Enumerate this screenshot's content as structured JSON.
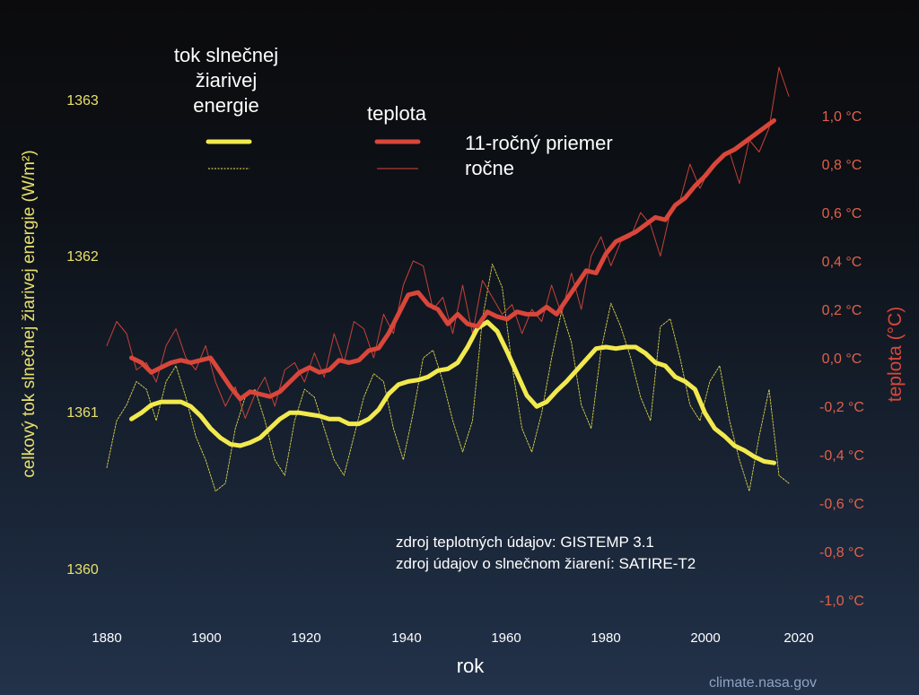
{
  "chart_data": {
    "type": "line",
    "colors": {
      "solar": "#f2e94e",
      "solar_label": "#e8e06a",
      "temperature": "#d9463a",
      "temperature_label": "#e0604a",
      "text": "#ffffff",
      "credit": "#8fa3c4"
    },
    "legend": {
      "solar_title_lines": [
        "tok slnečnej",
        "žiarivej",
        "energie"
      ],
      "temperature_title": "teplota",
      "smooth_label": "11-ročný priemer",
      "annual_label": "ročne"
    },
    "xlabel": "rok",
    "ylabel_left": "celkový tok slnečnej žiarivej energie (W/m²)",
    "ylabel_right": "teplota (°C)",
    "x_ticks": [
      "1880",
      "1900",
      "1920",
      "1940",
      "1960",
      "1980",
      "2000",
      "2020"
    ],
    "y_left_ticks": [
      "1360",
      "1361",
      "1362",
      "1363"
    ],
    "y_right_ticks": [
      "-1,0 °C",
      "-0,8 °C",
      "-0,6 °C",
      "-0,4 °C",
      "-0,2 °C",
      "0,0 °C",
      "0,2 °C",
      "0,4 °C",
      "0,6 °C",
      "0,8 °C",
      "1,0 °C"
    ],
    "xlim": [
      1880,
      2020
    ],
    "ylim_left": [
      1360,
      1363
    ],
    "ylim_right": [
      -1.0,
      1.0
    ],
    "sources": [
      "zdroj teplotných údajov: GISTEMP 3.1",
      "zdroj údajov o slnečnom žiarení: SATIRE-T2"
    ],
    "credit": "climate.nasa.gov",
    "series": [
      {
        "name": "tok slnečnej žiarivej energie – 11-ročný priemer",
        "axis": "left",
        "style": "thick",
        "x": [
          1885,
          1887,
          1889,
          1891,
          1893,
          1895,
          1897,
          1899,
          1901,
          1903,
          1905,
          1907,
          1909,
          1911,
          1913,
          1915,
          1917,
          1919,
          1921,
          1923,
          1925,
          1927,
          1929,
          1931,
          1933,
          1935,
          1937,
          1939,
          1941,
          1943,
          1945,
          1947,
          1949,
          1951,
          1953,
          1955,
          1957,
          1959,
          1961,
          1963,
          1965,
          1967,
          1969,
          1971,
          1973,
          1975,
          1977,
          1979,
          1981,
          1983,
          1985,
          1987,
          1989,
          1991,
          1993,
          1995,
          1997,
          1999,
          2001,
          2003,
          2005,
          2007,
          2009,
          2011,
          2013,
          2015
        ],
        "y": [
          1360.96,
          1361.0,
          1361.05,
          1361.07,
          1361.07,
          1361.07,
          1361.04,
          1360.98,
          1360.9,
          1360.84,
          1360.8,
          1360.79,
          1360.81,
          1360.84,
          1360.9,
          1360.96,
          1361.0,
          1361.0,
          1360.99,
          1360.98,
          1360.96,
          1360.96,
          1360.93,
          1360.93,
          1360.96,
          1361.02,
          1361.12,
          1361.18,
          1361.2,
          1361.21,
          1361.23,
          1361.27,
          1361.28,
          1361.32,
          1361.42,
          1361.54,
          1361.58,
          1361.52,
          1361.39,
          1361.25,
          1361.11,
          1361.04,
          1361.07,
          1361.14,
          1361.2,
          1361.27,
          1361.34,
          1361.41,
          1361.42,
          1361.41,
          1361.42,
          1361.42,
          1361.38,
          1361.32,
          1361.3,
          1361.23,
          1361.2,
          1361.15,
          1361.0,
          1360.9,
          1360.85,
          1360.79,
          1360.76,
          1360.72,
          1360.69,
          1360.68
        ]
      },
      {
        "name": "tok slnečnej žiarivej energie – ročne",
        "axis": "left",
        "style": "thin",
        "x": [
          1880,
          1882,
          1884,
          1886,
          1888,
          1890,
          1892,
          1894,
          1896,
          1898,
          1900,
          1902,
          1904,
          1906,
          1908,
          1910,
          1912,
          1914,
          1916,
          1918,
          1920,
          1922,
          1924,
          1926,
          1928,
          1930,
          1932,
          1934,
          1936,
          1938,
          1940,
          1942,
          1944,
          1946,
          1948,
          1950,
          1952,
          1954,
          1956,
          1958,
          1960,
          1962,
          1964,
          1966,
          1968,
          1970,
          1972,
          1974,
          1976,
          1978,
          1980,
          1982,
          1984,
          1986,
          1988,
          1990,
          1992,
          1994,
          1996,
          1998,
          2000,
          2002,
          2004,
          2006,
          2008,
          2010,
          2012,
          2014,
          2016,
          2018
        ],
        "y": [
          1360.65,
          1360.95,
          1361.05,
          1361.2,
          1361.15,
          1360.95,
          1361.2,
          1361.3,
          1361.1,
          1360.85,
          1360.7,
          1360.5,
          1360.55,
          1360.9,
          1361.1,
          1361.15,
          1360.95,
          1360.7,
          1360.6,
          1360.95,
          1361.15,
          1361.1,
          1360.9,
          1360.7,
          1360.6,
          1360.85,
          1361.1,
          1361.25,
          1361.2,
          1360.9,
          1360.7,
          1361.0,
          1361.35,
          1361.4,
          1361.2,
          1360.95,
          1360.75,
          1360.95,
          1361.6,
          1361.95,
          1361.8,
          1361.3,
          1360.9,
          1360.75,
          1361.0,
          1361.35,
          1361.65,
          1361.45,
          1361.05,
          1360.9,
          1361.4,
          1361.7,
          1361.55,
          1361.35,
          1361.1,
          1360.95,
          1361.55,
          1361.6,
          1361.35,
          1361.05,
          1360.95,
          1361.2,
          1361.3,
          1360.95,
          1360.7,
          1360.5,
          1360.85,
          1361.15,
          1360.6,
          1360.55
        ]
      },
      {
        "name": "teplota – 11-ročný priemer",
        "axis": "right",
        "style": "thick",
        "x": [
          1885,
          1887,
          1889,
          1891,
          1893,
          1895,
          1897,
          1899,
          1901,
          1903,
          1905,
          1907,
          1909,
          1911,
          1913,
          1915,
          1917,
          1919,
          1921,
          1923,
          1925,
          1927,
          1929,
          1931,
          1933,
          1935,
          1937,
          1939,
          1941,
          1943,
          1945,
          1947,
          1949,
          1951,
          1953,
          1955,
          1957,
          1959,
          1961,
          1963,
          1965,
          1967,
          1969,
          1971,
          1973,
          1975,
          1977,
          1979,
          1981,
          1983,
          1985,
          1987,
          1989,
          1991,
          1993,
          1995,
          1997,
          1999,
          2001,
          2003,
          2005,
          2007,
          2009,
          2011,
          2013,
          2015
        ],
        "y": [
          0.0,
          -0.02,
          -0.06,
          -0.04,
          -0.02,
          -0.01,
          -0.02,
          -0.01,
          0.0,
          -0.06,
          -0.12,
          -0.17,
          -0.14,
          -0.15,
          -0.16,
          -0.14,
          -0.1,
          -0.06,
          -0.04,
          -0.06,
          -0.05,
          -0.01,
          -0.02,
          -0.01,
          0.03,
          0.04,
          0.1,
          0.18,
          0.26,
          0.27,
          0.22,
          0.2,
          0.14,
          0.18,
          0.14,
          0.13,
          0.19,
          0.17,
          0.16,
          0.19,
          0.18,
          0.18,
          0.21,
          0.18,
          0.24,
          0.3,
          0.36,
          0.35,
          0.43,
          0.48,
          0.5,
          0.52,
          0.55,
          0.58,
          0.57,
          0.63,
          0.66,
          0.71,
          0.75,
          0.8,
          0.84,
          0.86,
          0.89,
          0.92,
          0.95,
          0.98
        ]
      },
      {
        "name": "teplota – ročne",
        "axis": "right",
        "style": "thin",
        "x": [
          1880,
          1882,
          1884,
          1886,
          1888,
          1890,
          1892,
          1894,
          1896,
          1898,
          1900,
          1902,
          1904,
          1906,
          1908,
          1910,
          1912,
          1914,
          1916,
          1918,
          1920,
          1922,
          1924,
          1926,
          1928,
          1930,
          1932,
          1934,
          1936,
          1938,
          1940,
          1942,
          1944,
          1946,
          1948,
          1950,
          1952,
          1954,
          1956,
          1958,
          1960,
          1962,
          1964,
          1966,
          1968,
          1970,
          1972,
          1974,
          1976,
          1978,
          1980,
          1982,
          1984,
          1986,
          1988,
          1990,
          1992,
          1994,
          1996,
          1998,
          2000,
          2002,
          2004,
          2006,
          2008,
          2010,
          2012,
          2014,
          2016,
          2018
        ],
        "y": [
          0.05,
          0.15,
          0.1,
          -0.05,
          -0.02,
          -0.1,
          0.05,
          0.12,
          0.0,
          -0.05,
          0.05,
          -0.1,
          -0.2,
          -0.12,
          -0.25,
          -0.15,
          -0.08,
          -0.2,
          -0.05,
          -0.02,
          -0.1,
          0.02,
          -0.08,
          0.1,
          -0.02,
          0.15,
          0.12,
          0.0,
          0.18,
          0.1,
          0.3,
          0.4,
          0.38,
          0.2,
          0.25,
          0.1,
          0.3,
          0.1,
          0.32,
          0.25,
          0.18,
          0.22,
          0.1,
          0.2,
          0.15,
          0.3,
          0.18,
          0.35,
          0.2,
          0.42,
          0.5,
          0.38,
          0.48,
          0.5,
          0.6,
          0.55,
          0.42,
          0.6,
          0.65,
          0.8,
          0.7,
          0.78,
          0.82,
          0.85,
          0.72,
          0.9,
          0.85,
          0.95,
          1.2,
          1.08
        ]
      }
    ]
  }
}
